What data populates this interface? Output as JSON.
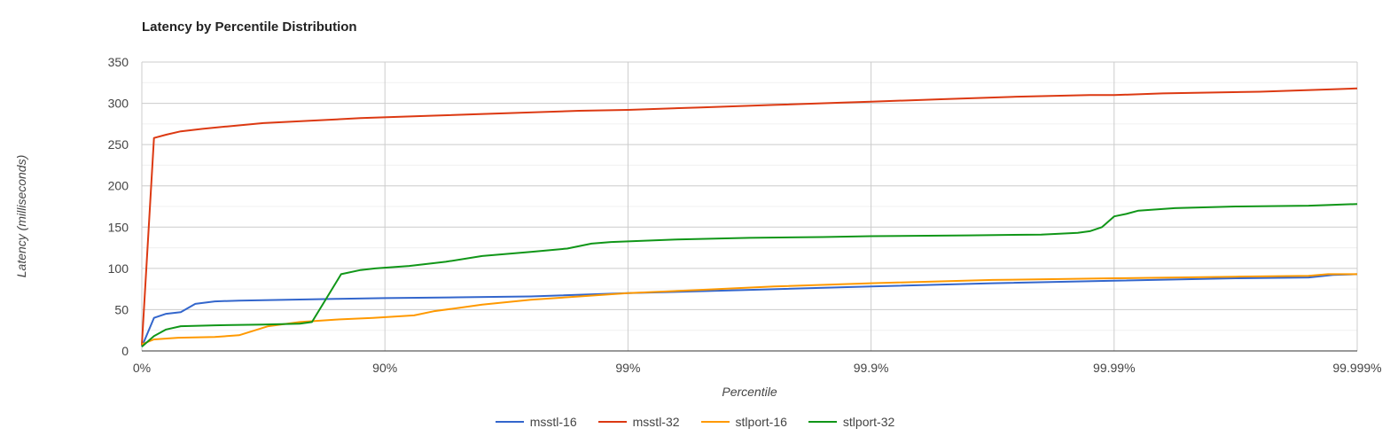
{
  "chart_data": {
    "type": "line",
    "title": "Latency by Percentile Distribution",
    "xlabel": "Percentile",
    "ylabel": "Latency (milliseconds)",
    "ylim": [
      0,
      350
    ],
    "yticks": [
      "0",
      "50",
      "100",
      "150",
      "200",
      "250",
      "300",
      "350"
    ],
    "xticks": [
      "0%",
      "90%",
      "99%",
      "99.9%",
      "99.99%",
      "99.999%"
    ],
    "xaxis_scale": "nines",
    "xlim": [
      0,
      5
    ],
    "grid": true,
    "legend_position": "bottom",
    "series": [
      {
        "name": "msstl-16",
        "color": "#3366cc",
        "points": [
          [
            0,
            5
          ],
          [
            0.05,
            40
          ],
          [
            0.1,
            45
          ],
          [
            0.16,
            47
          ],
          [
            0.22,
            57
          ],
          [
            0.3,
            60
          ],
          [
            0.4,
            61
          ],
          [
            0.6,
            62
          ],
          [
            0.8,
            63
          ],
          [
            1.0,
            64
          ],
          [
            1.3,
            65
          ],
          [
            1.6,
            66
          ],
          [
            2.0,
            70
          ],
          [
            2.5,
            74
          ],
          [
            3.0,
            78
          ],
          [
            3.5,
            82
          ],
          [
            4.0,
            85
          ],
          [
            4.5,
            88
          ],
          [
            4.8,
            89
          ],
          [
            4.9,
            92
          ],
          [
            5.0,
            93
          ]
        ]
      },
      {
        "name": "msstl-32",
        "color": "#dc3912",
        "points": [
          [
            0,
            7
          ],
          [
            0.05,
            258
          ],
          [
            0.1,
            262
          ],
          [
            0.16,
            266
          ],
          [
            0.25,
            269
          ],
          [
            0.35,
            272
          ],
          [
            0.5,
            276
          ],
          [
            0.7,
            279
          ],
          [
            0.9,
            282
          ],
          [
            1.2,
            285
          ],
          [
            1.5,
            288
          ],
          [
            1.8,
            291
          ],
          [
            2.0,
            292
          ],
          [
            2.3,
            295
          ],
          [
            2.6,
            298
          ],
          [
            2.9,
            301
          ],
          [
            3.0,
            302
          ],
          [
            3.3,
            305
          ],
          [
            3.6,
            308
          ],
          [
            3.9,
            310
          ],
          [
            4.0,
            310
          ],
          [
            4.2,
            312
          ],
          [
            4.6,
            314
          ],
          [
            4.9,
            317
          ],
          [
            5.0,
            318
          ]
        ]
      },
      {
        "name": "stlport-16",
        "color": "#ff9900",
        "points": [
          [
            0,
            8
          ],
          [
            0.05,
            14
          ],
          [
            0.15,
            16
          ],
          [
            0.3,
            17
          ],
          [
            0.4,
            19
          ],
          [
            0.52,
            30
          ],
          [
            0.65,
            35
          ],
          [
            0.8,
            38
          ],
          [
            0.95,
            40
          ],
          [
            1.12,
            43
          ],
          [
            1.2,
            48
          ],
          [
            1.4,
            56
          ],
          [
            1.6,
            62
          ],
          [
            1.8,
            66
          ],
          [
            2.0,
            70
          ],
          [
            2.3,
            74
          ],
          [
            2.6,
            78
          ],
          [
            3.0,
            82
          ],
          [
            3.5,
            86
          ],
          [
            4.0,
            88
          ],
          [
            4.5,
            90
          ],
          [
            4.8,
            91
          ],
          [
            4.88,
            93
          ],
          [
            5.0,
            93
          ]
        ]
      },
      {
        "name": "stlport-32",
        "color": "#109618",
        "points": [
          [
            0,
            5
          ],
          [
            0.05,
            18
          ],
          [
            0.1,
            26
          ],
          [
            0.16,
            30
          ],
          [
            0.3,
            31
          ],
          [
            0.5,
            32
          ],
          [
            0.65,
            33
          ],
          [
            0.7,
            35
          ],
          [
            0.76,
            64
          ],
          [
            0.82,
            93
          ],
          [
            0.9,
            98
          ],
          [
            0.96,
            100
          ],
          [
            1.1,
            103
          ],
          [
            1.25,
            108
          ],
          [
            1.4,
            115
          ],
          [
            1.6,
            120
          ],
          [
            1.75,
            124
          ],
          [
            1.85,
            130
          ],
          [
            1.93,
            132
          ],
          [
            2.2,
            135
          ],
          [
            2.5,
            137
          ],
          [
            2.8,
            138
          ],
          [
            3.0,
            139
          ],
          [
            3.4,
            140
          ],
          [
            3.7,
            141
          ],
          [
            3.85,
            143
          ],
          [
            3.9,
            145
          ],
          [
            3.95,
            150
          ],
          [
            4.0,
            163
          ],
          [
            4.05,
            166
          ],
          [
            4.1,
            170
          ],
          [
            4.25,
            173
          ],
          [
            4.5,
            175
          ],
          [
            4.8,
            176
          ],
          [
            5.0,
            178
          ]
        ]
      }
    ]
  }
}
